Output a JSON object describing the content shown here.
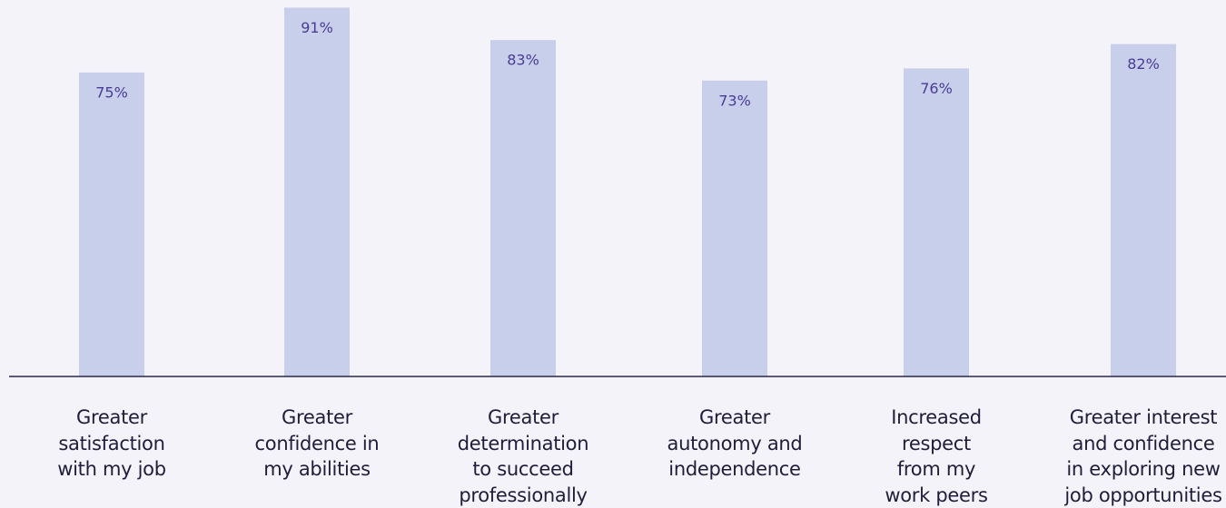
{
  "chart_data": {
    "type": "bar",
    "categories": [
      "Greater\nsatisfaction\nwith my job",
      "Greater\nconfidence in\nmy abilities",
      "Greater\ndetermination\nto succeed\nprofessionally",
      "Greater\nautonomy and\nindependence",
      "Increased\nrespect\nfrom my\nwork peers",
      "Greater interest\nand confidence\nin exploring new\njob opportunities"
    ],
    "values": [
      75,
      91,
      83,
      73,
      76,
      82
    ],
    "value_labels": [
      "75%",
      "91%",
      "83%",
      "73%",
      "76%",
      "82%"
    ],
    "color": "#c8cfea"
  }
}
